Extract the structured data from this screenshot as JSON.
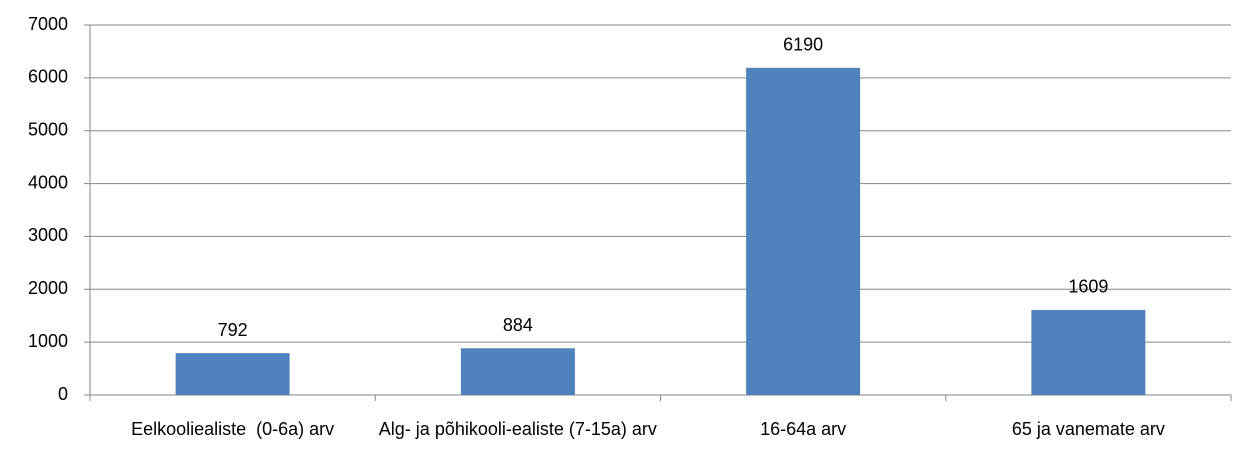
{
  "chart_data": {
    "type": "bar",
    "categories": [
      "Eelkooliealiste  (0-6a) arv",
      "Alg- ja põhikooli-ealiste (7-15a) arv",
      "16-64a arv",
      "65 ja vanemate arv"
    ],
    "values": [
      792,
      884,
      6190,
      1609
    ],
    "color": "#4f81bd",
    "ylim": [
      0,
      7000
    ],
    "yticks": [
      0,
      1000,
      2000,
      3000,
      4000,
      5000,
      6000,
      7000
    ],
    "grid": true
  }
}
